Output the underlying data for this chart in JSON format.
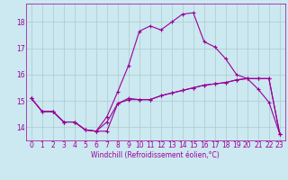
{
  "xlabel": "Windchill (Refroidissement éolien,°C)",
  "bg_color": "#cce8f0",
  "line_color": "#990099",
  "grid_color": "#aacccc",
  "xlim": [
    -0.5,
    23.5
  ],
  "ylim": [
    13.5,
    18.7
  ],
  "yticks": [
    14,
    15,
    16,
    17,
    18
  ],
  "xticks": [
    0,
    1,
    2,
    3,
    4,
    5,
    6,
    7,
    8,
    9,
    10,
    11,
    12,
    13,
    14,
    15,
    16,
    17,
    18,
    19,
    20,
    21,
    22,
    23
  ],
  "line1_x": [
    0,
    1,
    2,
    3,
    4,
    5,
    6,
    7,
    8,
    9,
    10,
    11,
    12,
    13,
    14,
    15,
    16,
    17,
    18,
    19,
    20,
    21,
    22,
    23
  ],
  "line1_y": [
    15.1,
    14.6,
    14.6,
    14.2,
    14.2,
    13.9,
    13.85,
    13.85,
    14.9,
    15.1,
    15.05,
    15.05,
    15.2,
    15.3,
    15.4,
    15.5,
    15.6,
    15.65,
    15.7,
    15.8,
    15.85,
    15.85,
    15.85,
    13.75
  ],
  "line2_x": [
    0,
    1,
    2,
    3,
    4,
    5,
    6,
    7,
    8,
    9,
    10,
    11,
    12,
    13,
    14,
    15,
    16,
    17,
    18,
    19,
    20,
    21,
    22,
    23
  ],
  "line2_y": [
    15.1,
    14.6,
    14.6,
    14.2,
    14.2,
    13.9,
    13.85,
    14.4,
    15.35,
    16.35,
    17.65,
    17.85,
    17.7,
    18.0,
    18.3,
    18.35,
    17.25,
    17.05,
    16.6,
    16.0,
    15.85,
    15.45,
    14.95,
    13.75
  ],
  "line3_x": [
    0,
    1,
    2,
    3,
    4,
    5,
    6,
    7,
    8,
    9,
    10,
    11,
    12,
    13,
    14,
    15,
    16,
    17,
    18,
    19,
    20,
    21,
    22,
    23
  ],
  "line3_y": [
    15.1,
    14.6,
    14.6,
    14.2,
    14.2,
    13.9,
    13.85,
    14.2,
    14.9,
    15.05,
    15.05,
    15.05,
    15.2,
    15.3,
    15.4,
    15.5,
    15.6,
    15.65,
    15.7,
    15.8,
    15.85,
    15.85,
    15.85,
    13.75
  ],
  "xlabel_fontsize": 5.5,
  "tick_fontsize": 5.5,
  "marker_size": 3.0,
  "linewidth": 0.8
}
